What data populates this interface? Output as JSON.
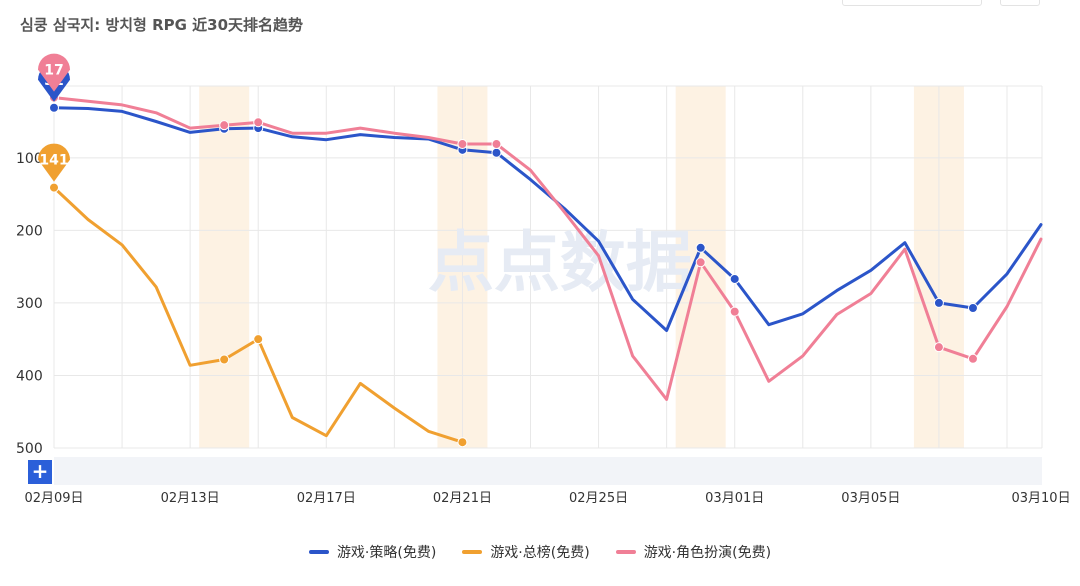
{
  "title": "심쿵 삼국지: 방치형 RPG 近30天排名趋势",
  "watermark": "点点数据",
  "zoom_label": "+",
  "colors": {
    "strategy": "#2b55c9",
    "overall": "#f0a030",
    "rpg": "#f07f96",
    "highlight": "#fdf2e3",
    "grid": "#e8e8e8"
  },
  "chart_data": {
    "type": "line",
    "title": "심쿵 삼국지: 방치형 RPG 近30天排名趋势",
    "y_inverted": true,
    "ylim": [
      1,
      500
    ],
    "yticks": [
      100,
      200,
      300,
      400,
      500
    ],
    "x": [
      "02月09日",
      "02月10日",
      "02月11日",
      "02月12日",
      "02月13日",
      "02月14日",
      "02月15日",
      "02月16日",
      "02月17日",
      "02月18日",
      "02月19日",
      "02月20日",
      "02月21日",
      "02月22日",
      "02月23日",
      "02月24日",
      "02月25日",
      "02月26日",
      "02月27日",
      "02月28日",
      "03月01日",
      "03月02日",
      "03月03日",
      "03月04日",
      "03月05日",
      "03月06日",
      "03月07日",
      "03月08日",
      "03月09日",
      "03月10日"
    ],
    "xtick_labels": [
      "02月09日",
      "02月13日",
      "02月17日",
      "02月21日",
      "02月25日",
      "03月01日",
      "03月05日",
      "03月10日"
    ],
    "xtick_index": [
      0,
      4,
      8,
      12,
      16,
      20,
      24,
      29
    ],
    "highlight_index": [
      5,
      12,
      19,
      26
    ],
    "series": [
      {
        "name": "游戏·策略(免费)",
        "color_key": "strategy",
        "values": [
          31,
          32,
          36,
          50,
          65,
          60,
          59,
          71,
          75,
          68,
          72,
          74,
          89,
          93,
          130,
          170,
          215,
          295,
          338,
          224,
          267,
          330,
          315,
          283,
          255,
          217,
          300,
          307,
          260,
          192
        ],
        "markers": [
          0,
          5,
          6,
          12,
          13,
          19,
          20,
          26,
          27
        ],
        "pin": {
          "index": 0,
          "label": "31"
        }
      },
      {
        "name": "游戏·总榜(免费)",
        "color_key": "overall",
        "values": [
          141,
          185,
          220,
          278,
          386,
          378,
          350,
          458,
          483,
          411,
          445,
          477,
          492,
          null,
          null,
          null,
          null,
          null,
          null,
          null,
          null,
          null,
          null,
          null,
          null,
          null,
          null,
          null,
          null,
          null
        ],
        "markers": [
          0,
          5,
          6,
          12
        ],
        "pin": {
          "index": 0,
          "label": "141"
        }
      },
      {
        "name": "游戏·角色扮演(免费)",
        "color_key": "rpg",
        "values": [
          17,
          22,
          27,
          38,
          59,
          55,
          51,
          66,
          66,
          59,
          66,
          72,
          81,
          81,
          117,
          175,
          235,
          373,
          433,
          244,
          312,
          408,
          373,
          316,
          287,
          226,
          361,
          377,
          305,
          212
        ],
        "markers": [
          0,
          5,
          6,
          12,
          13,
          19,
          20,
          26,
          27
        ],
        "pin": {
          "index": 0,
          "label": "17"
        }
      }
    ]
  }
}
